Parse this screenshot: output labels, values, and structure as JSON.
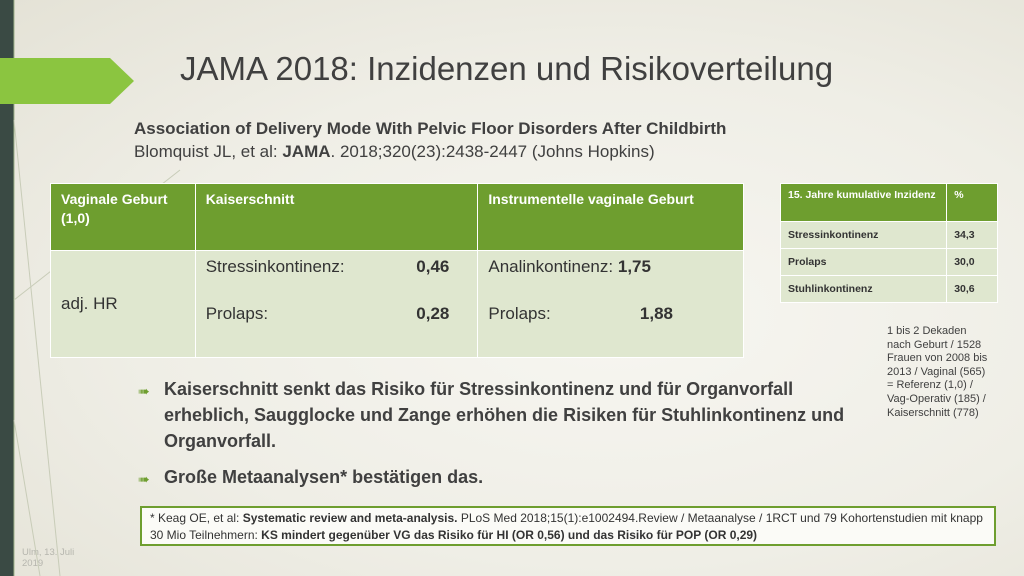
{
  "title": "JAMA 2018: Inzidenzen und Risikoverteilung",
  "reference": {
    "line1": "Association of Delivery Mode With Pelvic Floor Disorders After Childbirth",
    "line2_prefix": "Blomquist JL, et al: ",
    "line2_journal": "JAMA",
    "line2_suffix": ". 2018;320(23):2438-2447 (Johns Hopkins)"
  },
  "main_table": {
    "headers": [
      "Vaginale Geburt (1,0)",
      "Kaiserschnitt",
      "Instrumentelle vaginale Geburt"
    ],
    "row_label": "adj. HR",
    "kaiserschnitt": [
      {
        "label": "Stressinkontinenz:",
        "value": "0,46"
      },
      {
        "label": "Prolaps:",
        "value": "0,28"
      }
    ],
    "instrumentell": [
      {
        "label": "Analinkontinenz:",
        "value": "1,75"
      },
      {
        "label": "Prolaps:",
        "value": "1,88"
      }
    ]
  },
  "side_table": {
    "headers": [
      "15. Jahre kumulative Inzidenz",
      "%"
    ],
    "rows": [
      {
        "label": "Stressinkontinenz",
        "value": "34,3"
      },
      {
        "label": "Prolaps",
        "value": "30,0"
      },
      {
        "label": "Stuhlinkontinenz",
        "value": "30,6"
      }
    ]
  },
  "side_note": [
    "1 bis 2 Dekaden",
    "nach Geburt / 1528",
    "Frauen von 2008 bis",
    "2013 / Vaginal (565)",
    "= Referenz (1,0) /",
    "Vag-Operativ (185) /",
    "Kaiserschnitt (778)"
  ],
  "bullets": [
    "Kaiserschnitt senkt das Risiko für Stressinkontinenz und für Organvorfall erheblich, Saugglocke und Zange erhöhen die Risiken für Stuhlinkontinenz und Organvorfall.",
    "Große Metaanalysen* bestätigen das."
  ],
  "footnote": {
    "p1": "* Keag OE, et al: ",
    "p2": "Systematic review and meta-analysis.",
    "p3": " PLoS Med 2018;15(1):e1002494.Review / Metaanalyse / 1RCT und 79 Kohortenstudien mit knapp 30 Mio Teilnehmern: ",
    "p4": "KS mindert gegenüber VG das Risiko für HI (OR 0,56) und das Risiko für POP (OR 0,29)"
  },
  "date": "Ulm, 13. Juli 2019",
  "colors": {
    "accent": "#6e9e2f",
    "cell": "#dfe7cf",
    "stripe": "#3a4a44"
  },
  "icons": {
    "bullet": "arrow-right-icon"
  }
}
